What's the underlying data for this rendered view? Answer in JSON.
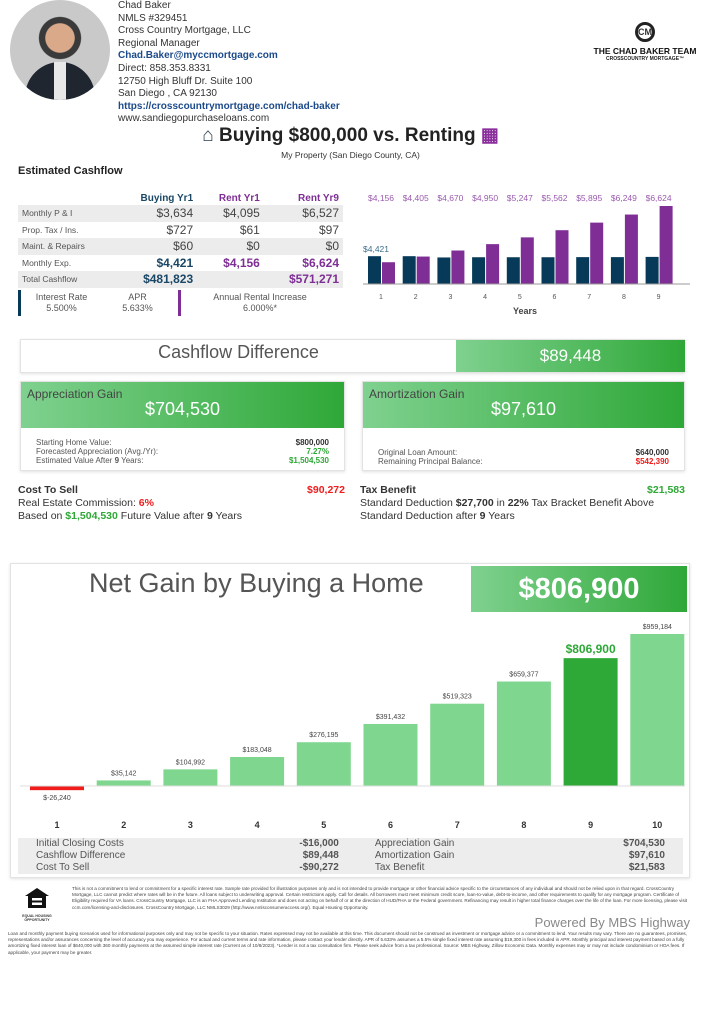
{
  "agent": {
    "name": "Chad Baker",
    "nmls": "NMLS #329451",
    "company": "Cross Country Mortgage, LLC",
    "role": "Regional Manager",
    "email": "Chad.Baker@myccmortgage.com",
    "direct": "Direct: 858.353.8331",
    "address1": "12750 High Bluff Dr. Suite 100",
    "address2": "San Diego , CA 92130",
    "url": "https://crosscountrymortgage.com/chad-baker",
    "site": "www.sandiegopurchaseloans.com"
  },
  "logo": {
    "mark": "CM",
    "team": "THE CHAD BAKER TEAM",
    "sub": "CROSSCOUNTRY MORTGAGE™"
  },
  "title": {
    "text": "Buying $800,000 vs. Renting",
    "subtitle": "My Property (San Diego County, CA)",
    "icons": [
      "home-icon",
      "building-icon"
    ]
  },
  "cashflow": {
    "heading": "Estimated Cashflow",
    "columns": [
      "Buying Yr1",
      "Rent Yr1",
      "Rent Yr9"
    ],
    "rows": [
      [
        "Monthly P & I",
        "$3,634",
        "$4,095",
        "$6,527"
      ],
      [
        "Prop. Tax / Ins.",
        "$727",
        "$61",
        "$97"
      ],
      [
        "Maint. & Repairs",
        "$60",
        "$0",
        "$0"
      ],
      [
        "Monthly Exp.",
        "$4,421",
        "$4,156",
        "$6,624"
      ],
      [
        "Total Cashflow",
        "$481,823",
        "",
        "$571,271"
      ]
    ],
    "interest_label": "Interest Rate",
    "interest": "5.500%",
    "apr_label": "APR",
    "apr": "5.633%",
    "rent_inc_label": "Annual Rental Increase",
    "rent_inc": "6.000%*"
  },
  "colors": {
    "buy": "#063a58",
    "rent": "#7e2e95",
    "green": "#2ea836",
    "light_green": "#7fd68f",
    "red": "#f01c1c"
  },
  "chart_data": [
    {
      "type": "bar",
      "xlabel": "Years",
      "categories": [
        "1",
        "2",
        "3",
        "4",
        "5",
        "6",
        "7",
        "8",
        "9"
      ],
      "series": [
        {
          "values": [
            4421,
            4421,
            4365,
            4375,
            4375,
            4375,
            4380,
            4380,
            4390
          ]
        },
        {
          "values": [
            4156,
            4405,
            4670,
            4950,
            5247,
            5562,
            5895,
            6249,
            6624
          ]
        }
      ],
      "labels_buy": [
        "$4,421"
      ],
      "labels_rent": [
        "$4,156",
        "$4,405",
        "$4,670",
        "$4,950",
        "$5,247",
        "$5,562",
        "$5,895",
        "$6,249",
        "$6,624"
      ],
      "ylim": [
        3200,
        6800
      ]
    },
    {
      "type": "bar",
      "title": "Net Gain by Buying a Home",
      "categories": [
        "1",
        "2",
        "3",
        "4",
        "5",
        "6",
        "7",
        "8",
        "9",
        "10"
      ],
      "values": [
        -26240,
        35142,
        104992,
        183048,
        276195,
        391432,
        519323,
        659377,
        806900,
        959184
      ],
      "labels": [
        "$-26,240",
        "$35,142",
        "$104,992",
        "$183,048",
        "$276,195",
        "$391,432",
        "$519,323",
        "$659,377",
        "$806,900",
        "$959,184"
      ],
      "highlight": "9",
      "ylim": [
        -30000,
        959184
      ]
    }
  ],
  "diff": {
    "label": "Cashflow Difference",
    "value": "$89,448"
  },
  "appreciation": {
    "label": "Appreciation Gain",
    "value": "$704,530",
    "rows": [
      [
        "Starting Home Value:",
        "$800,000"
      ],
      [
        "Forecasted Appreciation (Avg./Yr):",
        "7.27%"
      ],
      [
        "Estimated Value After ",
        "9",
        " Years:",
        "$1,504,530"
      ]
    ]
  },
  "amortization": {
    "label": "Amortization Gain",
    "value": "$97,610",
    "rows": [
      [
        "Original Loan Amount:",
        "$640,000"
      ],
      [
        "Remaining Principal Balance:",
        "$542,390"
      ]
    ]
  },
  "cost_to_sell": {
    "label": "Cost To Sell",
    "value": "$90,272",
    "l1a": "Real Estate Commission: ",
    "l1b": "6%",
    "l2a": "Based on ",
    "l2b": "$1,504,530",
    "l2c": " Future Value after ",
    "l2d": "9",
    "l2e": " Years"
  },
  "tax": {
    "label": "Tax Benefit",
    "value": "$21,583",
    "a": "Standard Deduction ",
    "b": "$27,700",
    "c": " in ",
    "d": "22%",
    "e": " Tax Bracket Benefit Above Standard Deduction after ",
    "f": "9",
    "g": " Years"
  },
  "net": {
    "title": "Net Gain by Buying a Home",
    "value": "$806,900"
  },
  "summary": [
    [
      "Initial Closing Costs",
      "-$16,000",
      "Appreciation Gain",
      "$704,530"
    ],
    [
      "Cashflow Difference",
      "$89,448",
      "Amortization Gain",
      "$97,610"
    ],
    [
      "Cost To Sell",
      "-$90,272",
      "Tax Benefit",
      "$21,583"
    ]
  ],
  "ehl": "EQUAL HOUSING OPPORTUNITY",
  "disclaimer": "This is not a commitment to lend or commitment for a specific interest rate. Sample rate provided for illustration purposes only and is not intended to provide mortgage or other financial advice specific to the circumstances of any individual and should not be relied upon in that regard. CrossCountry Mortgage, LLC cannot predict where rates will be in the future. All loans subject to underwriting approval. Certain restrictions apply. Call for details. All borrowers must meet minimum credit score, loan-to-value, debt-to-income, and other requirements to qualify for any mortgage program. Certificate of Eligibility required for VA loans. CrossCountry Mortgage, LLC is an FHA Approved Lending Institution and does not acting on behalf of or at the direction of HUD/FHA or the Federal government. Refinancing may result in higher total finance charges over the life of the loan. For more licensing, please visit ccm.com/licensing-and-disclosures. CrossCountry Mortgage, LLC NMLS3029 (http://www.nmlsconsumeraccess.org/). Equal Housing Opportunity.",
  "powered": "Powered By MBS Highway",
  "fine": "Loan and monthly payment buying scenarios used for informational purposes only and may not be specific to your situation. Rates expressed may not be available at this time. This document should not be construed as investment or mortgage advice or a commitment to lend. Your results may vary. There are no guarantees, promises, representations and/or assurances concerning the level of accuracy you may experience. For actual and current terms and rate information, please contact your lender directly. APR of 5.633% assumes a 5.5% simple fixed interest rate assuming $19,300 in fees included in APR. Monthly principal and interest payment based on a fully amortizing fixed interest loan of $640,000 with 360 monthly payments at the assumed simple interest rate (Current as of 10/8/2023). *Lender is not a tax consultation firm. Please seek advice from a tax professional. Source: MBS Highway, Zillow Economic Data. Monthly expenses may or may not include condominium or HOA fees. If applicable, your payment may be greater."
}
